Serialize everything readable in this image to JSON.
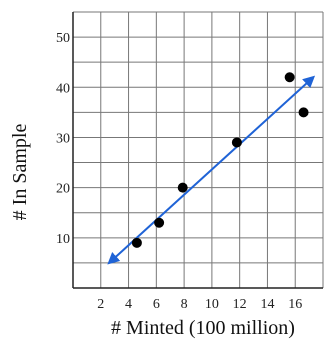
{
  "chart_data": {
    "type": "scatter",
    "xlabel": "# Minted (100 million)",
    "ylabel": "# In Sample",
    "xlim": [
      0,
      18
    ],
    "ylim": [
      0,
      55
    ],
    "xticks": [
      2,
      4,
      6,
      8,
      10,
      12,
      14,
      16
    ],
    "yticks": [
      10,
      20,
      30,
      40,
      50
    ],
    "grid": true,
    "series": [
      {
        "points": [
          {
            "x": 4.6,
            "y": 9
          },
          {
            "x": 6.2,
            "y": 13
          },
          {
            "x": 7.9,
            "y": 20
          },
          {
            "x": 11.8,
            "y": 29
          },
          {
            "x": 15.6,
            "y": 42
          },
          {
            "x": 16.6,
            "y": 35
          }
        ]
      }
    ],
    "trend_line": {
      "x": [
        2.6,
        17.3
      ],
      "y": [
        5,
        42
      ],
      "arrows": "both"
    },
    "colors": {
      "points": "#000000",
      "trend_line": "#1f63d6",
      "grid": "#777777",
      "axis": "#222222"
    }
  }
}
